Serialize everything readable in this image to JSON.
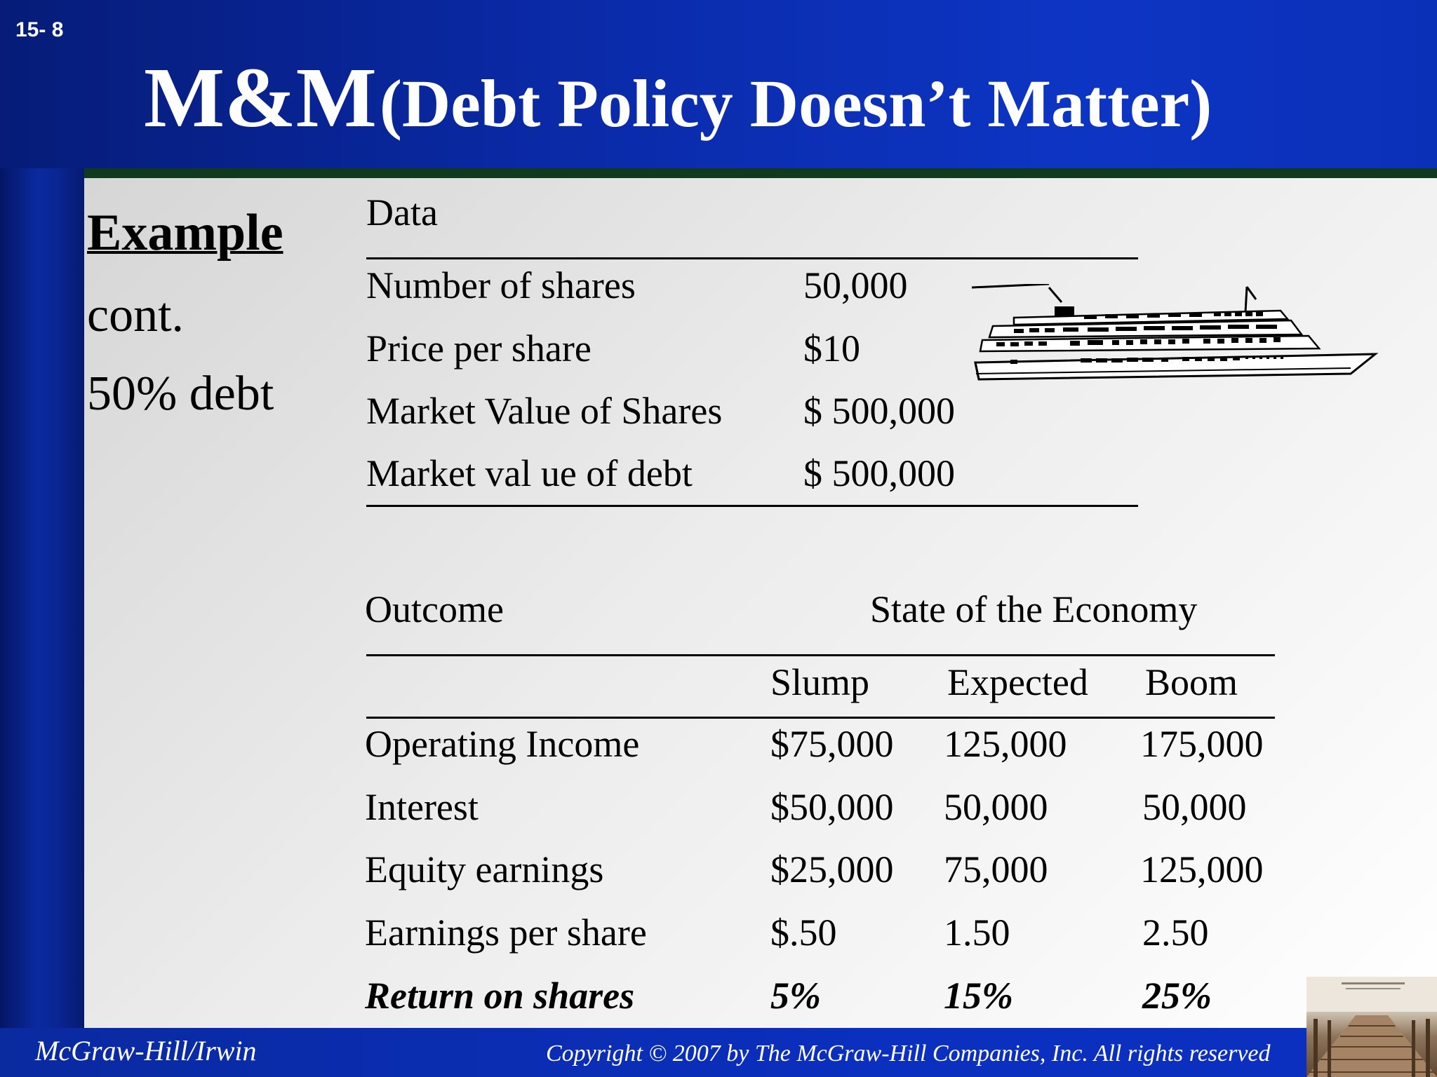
{
  "slide_number": "15- 8",
  "title": {
    "main": "M&M",
    "sub": "(Debt Policy Doesn’t Matter)"
  },
  "left": {
    "example": "Example",
    "cont": "cont.",
    "debt": "50% debt"
  },
  "data_table": {
    "header": "Data",
    "rows": [
      {
        "label": "Number  of shares",
        "value": "50,000"
      },
      {
        "label": "Price  per share",
        "value": "$10"
      },
      {
        "label": "Market Value  of Shares",
        "value": "$ 500,000"
      },
      {
        "label": "Market val ue of debt",
        "value": "$ 500,000"
      }
    ]
  },
  "outcome_table": {
    "outcome_label": "Outcome",
    "group_label": "State  of  the  Economy",
    "columns": [
      "Slump",
      "Expected",
      "Boom"
    ],
    "rows": [
      {
        "label": "Operating  Income",
        "values": [
          "$75,000",
          "125,000",
          "175,000"
        ]
      },
      {
        "label": "Interest",
        "values": [
          "$50,000",
          "50,000",
          "50,000"
        ]
      },
      {
        "label": "Equity  earnings",
        "values": [
          "$25,000",
          "75,000",
          "125,000"
        ]
      },
      {
        "label": "Earnings   per share",
        "values": [
          "$.50",
          "1.50",
          "2.50"
        ]
      },
      {
        "label": "Return on shares",
        "values": [
          "5%",
          "15%",
          "25%"
        ]
      }
    ]
  },
  "footer": {
    "left": "McGraw-Hill/Irwin",
    "right": "Copyright © 2007 by The McGraw-Hill Companies, Inc. All rights reserved"
  },
  "images": {
    "ship": "cruise-ship-icon",
    "corner": "boardwalk-photo"
  }
}
